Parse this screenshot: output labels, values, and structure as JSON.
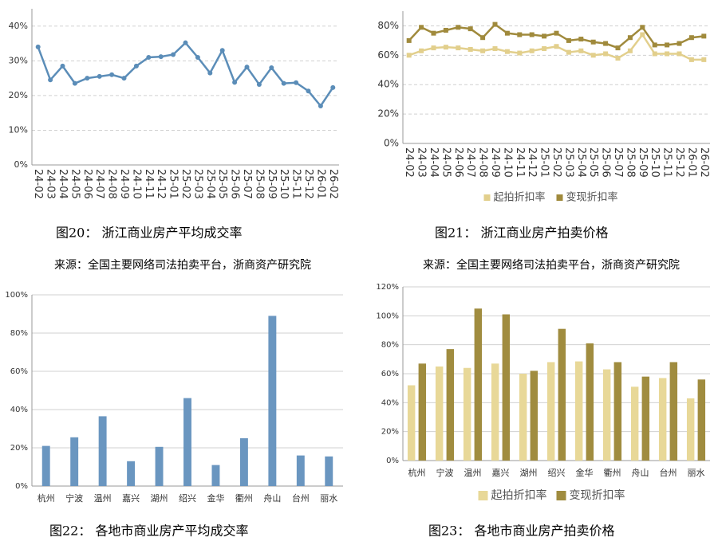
{
  "chart_data": [
    {
      "type": "line",
      "title": "图20：  浙江商业房产平均成交率",
      "source": "来源：全国主要网络司法拍卖平台，浙商资产研究院",
      "categories": [
        "24-02",
        "24-03",
        "24-04",
        "24-05",
        "24-06",
        "24-07",
        "24-08",
        "24-09",
        "24-10",
        "24-11",
        "24-12",
        "25-01",
        "25-02",
        "25-03",
        "25-04",
        "25-05",
        "25-06",
        "25-07",
        "25-08",
        "25-09",
        "25-10",
        "25-11",
        "25-12",
        "26-01",
        "26-02"
      ],
      "values": [
        34,
        24.5,
        28.5,
        23.5,
        25,
        25.5,
        26,
        25,
        28.5,
        31,
        31.2,
        31.8,
        35.2,
        31,
        26.5,
        33,
        23.8,
        28.2,
        23.2,
        28,
        23.5,
        23.7,
        21.3,
        17,
        22.3
      ],
      "color": "#5b8db8",
      "ylim": [
        0,
        45
      ],
      "yticks": [
        {
          "value": 0,
          "label": "0%"
        },
        {
          "value": 10,
          "label": "10%"
        },
        {
          "value": 20,
          "label": "20%"
        },
        {
          "value": 30,
          "label": "30%"
        },
        {
          "value": 40,
          "label": "40%"
        }
      ],
      "grid": true
    },
    {
      "type": "line",
      "title": "图21：  浙江商业房产拍卖价格",
      "source": "来源：全国主要网络司法拍卖平台，浙商资产研究院",
      "categories": [
        "24-02",
        "24-03",
        "24-04",
        "24-05",
        "24-06",
        "24-07",
        "24-08",
        "24-09",
        "24-10",
        "24-11",
        "24-12",
        "25-01",
        "25-02",
        "25-03",
        "25-04",
        "25-05",
        "25-06",
        "25-07",
        "25-08",
        "25-09",
        "25-10",
        "25-11",
        "25-12",
        "26-01",
        "26-02"
      ],
      "series": [
        {
          "name": "起拍折扣率",
          "color": "#e2cf8c",
          "values": [
            60,
            63,
            65,
            65.5,
            65,
            64,
            63,
            64.5,
            62.5,
            61.5,
            63,
            64.5,
            66,
            62,
            63,
            60,
            61,
            58,
            63,
            74,
            61,
            61,
            61,
            57,
            57
          ]
        },
        {
          "name": "变现折扣率",
          "color": "#a08a3c",
          "values": [
            70,
            79,
            75,
            77,
            79,
            78,
            72,
            81,
            75,
            74,
            74,
            73,
            75,
            70,
            71,
            69,
            68,
            65,
            72,
            79,
            67,
            67,
            68,
            72,
            73
          ]
        }
      ],
      "ylim": [
        0,
        90
      ],
      "yticks": [
        {
          "value": 0,
          "label": "0%"
        },
        {
          "value": 20,
          "label": "20%"
        },
        {
          "value": 40,
          "label": "40%"
        },
        {
          "value": 60,
          "label": "60%"
        },
        {
          "value": 80,
          "label": "80%"
        }
      ],
      "grid": true,
      "legend": "bottom"
    },
    {
      "type": "bar",
      "title": "图22：  各地市商业房产平均成交率",
      "categories": [
        "杭州",
        "宁波",
        "温州",
        "嘉兴",
        "湖州",
        "绍兴",
        "金华",
        "衢州",
        "舟山",
        "台州",
        "丽水"
      ],
      "values": [
        21,
        25.5,
        36.5,
        13,
        20.5,
        46,
        11,
        25,
        89,
        16,
        15.5
      ],
      "color": "#6a96c0",
      "ylim": [
        0,
        100
      ],
      "yticks": [
        {
          "value": 0,
          "label": "0%"
        },
        {
          "value": 20,
          "label": "20%"
        },
        {
          "value": 40,
          "label": "40%"
        },
        {
          "value": 60,
          "label": "60%"
        },
        {
          "value": 80,
          "label": "80%"
        },
        {
          "value": 100,
          "label": "100%"
        }
      ],
      "grid": true
    },
    {
      "type": "bar",
      "title": "图23：  各地市商业房产拍卖价格",
      "categories": [
        "杭州",
        "宁波",
        "温州",
        "嘉兴",
        "湖州",
        "绍兴",
        "金华",
        "衢州",
        "舟山",
        "台州",
        "丽水"
      ],
      "series": [
        {
          "name": "起拍折扣率",
          "color": "#e8d898",
          "values": [
            52,
            65,
            64,
            67,
            60,
            68,
            68.5,
            63,
            51,
            57,
            43
          ]
        },
        {
          "name": "变现折扣率",
          "color": "#a08c3f",
          "values": [
            67,
            77,
            105,
            101,
            62,
            91,
            81,
            68,
            58,
            68,
            56
          ]
        }
      ],
      "ylim": [
        0,
        120
      ],
      "yticks": [
        {
          "value": 0,
          "label": "0%"
        },
        {
          "value": 20,
          "label": "20%"
        },
        {
          "value": 40,
          "label": "40%"
        },
        {
          "value": 60,
          "label": "60%"
        },
        {
          "value": 80,
          "label": "80%"
        },
        {
          "value": 100,
          "label": "100%"
        },
        {
          "value": 120,
          "label": "120%"
        }
      ],
      "grid": true,
      "legend": "bottom"
    }
  ]
}
